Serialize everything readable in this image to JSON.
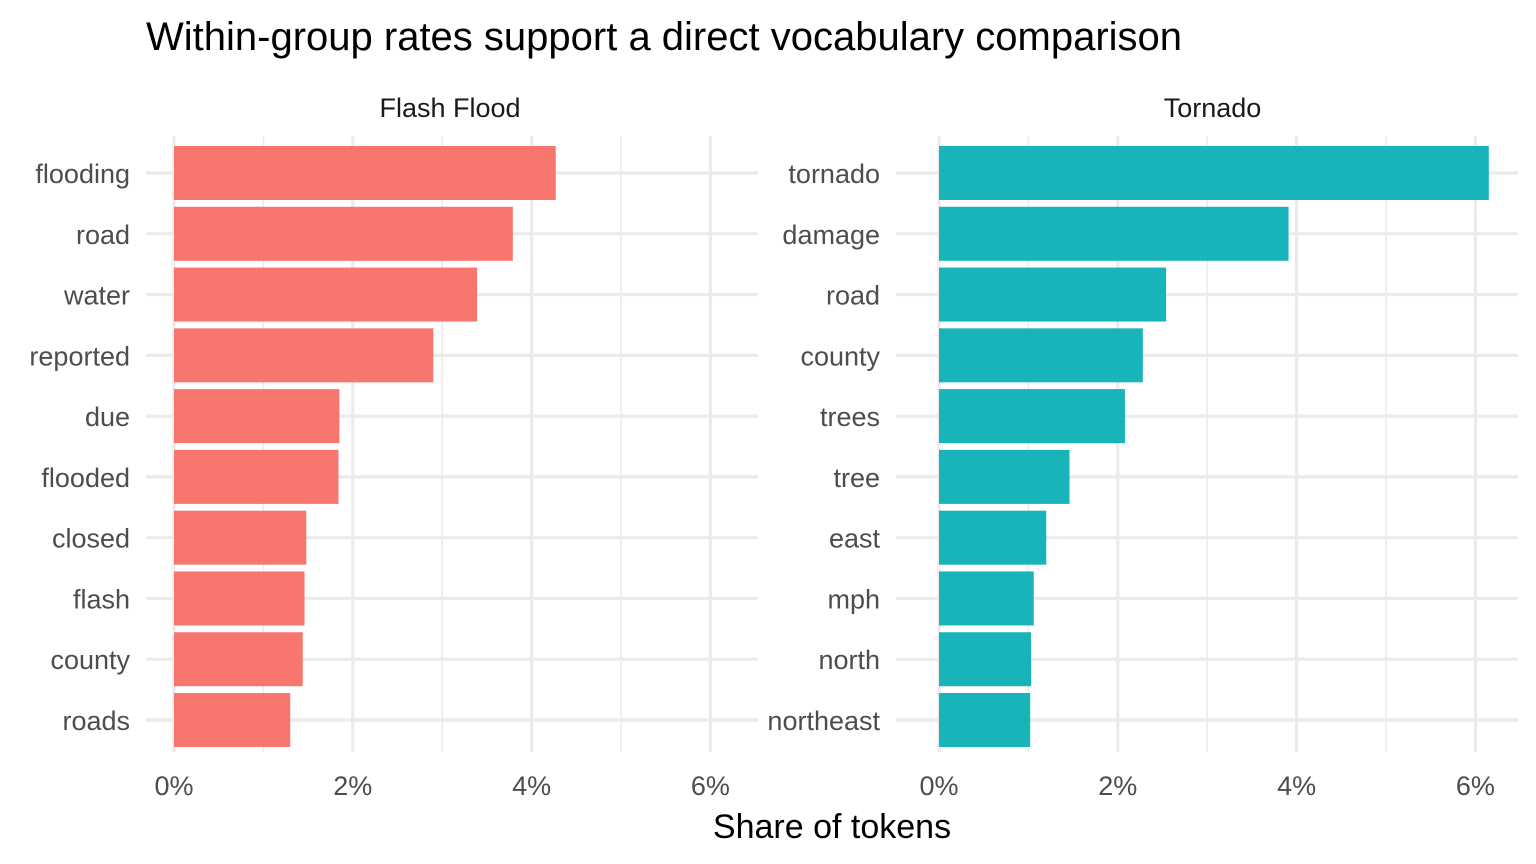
{
  "chart_data": {
    "type": "bar",
    "orientation": "horizontal",
    "title": "Within-group rates support a direct vocabulary comparison",
    "xlabel": "Share of tokens",
    "ylabel": "",
    "xlim": [
      0,
      0.063
    ],
    "x_ticks": [
      0,
      0.02,
      0.04,
      0.06
    ],
    "x_tick_labels": [
      "0%",
      "2%",
      "4%",
      "6%"
    ],
    "grid": true,
    "panels": [
      {
        "name": "Flash Flood",
        "color": "#F8766D",
        "categories": [
          "flooding",
          "road",
          "water",
          "reported",
          "due",
          "flooded",
          "closed",
          "flash",
          "county",
          "roads"
        ],
        "values": [
          0.0427,
          0.0379,
          0.0339,
          0.029,
          0.0185,
          0.0184,
          0.0148,
          0.0146,
          0.0144,
          0.013
        ]
      },
      {
        "name": "Tornado",
        "color": "#19B4B9",
        "categories": [
          "tornado",
          "damage",
          "road",
          "county",
          "trees",
          "tree",
          "east",
          "mph",
          "north",
          "northeast"
        ],
        "values": [
          0.0615,
          0.0391,
          0.0254,
          0.0228,
          0.0208,
          0.0146,
          0.012,
          0.0106,
          0.0103,
          0.0102
        ]
      }
    ]
  }
}
